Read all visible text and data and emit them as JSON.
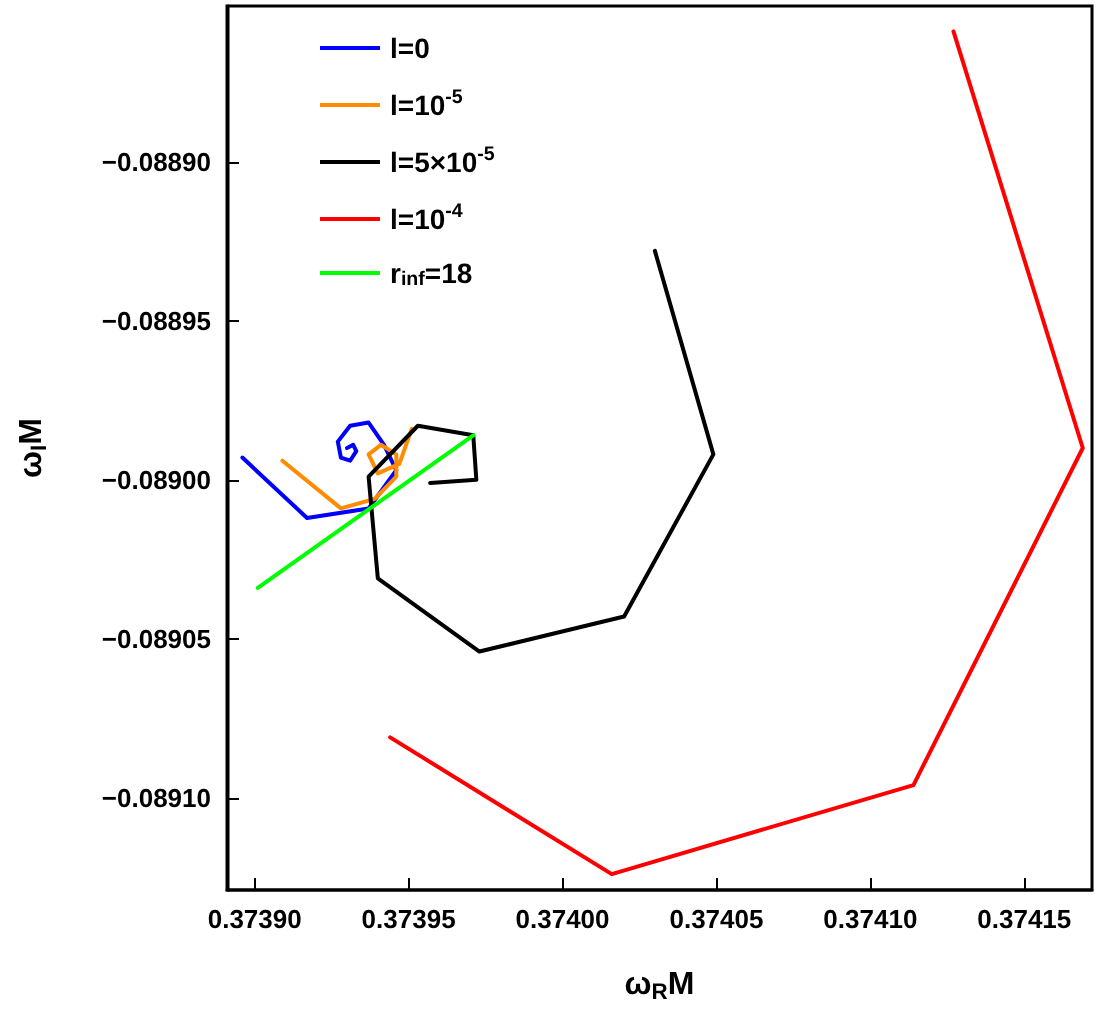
{
  "chart_data": {
    "type": "line",
    "xlabel": "ω$_{R}$M",
    "ylabel": "ω$_{I}$M",
    "legend": "top left",
    "grid": false,
    "marker": "none",
    "line_style": "solid",
    "xlim": [
      0.373891,
      0.374172
    ],
    "ylim": [
      -0.089129,
      -0.088851
    ],
    "xticks": [
      {
        "value": 0.3739,
        "label": "0.37390"
      },
      {
        "value": 0.37395,
        "label": "0.37395"
      },
      {
        "value": 0.374,
        "label": "0.37400"
      },
      {
        "value": 0.37405,
        "label": "0.37405"
      },
      {
        "value": 0.3741,
        "label": "0.37410"
      },
      {
        "value": 0.37415,
        "label": "0.37415"
      }
    ],
    "yticks": [
      {
        "value": -0.0889,
        "label": "−0.08890"
      },
      {
        "value": -0.08895,
        "label": "−0.08895"
      },
      {
        "value": -0.089,
        "label": "−0.08900"
      },
      {
        "value": -0.08905,
        "label": "−0.08905"
      },
      {
        "value": -0.0891,
        "label": "−0.08910"
      }
    ],
    "series": [
      {
        "name": "l=0",
        "color": "#0000ff",
        "x": [
          0.373896,
          0.373917,
          0.373937,
          0.373946,
          0.373942,
          0.373937,
          0.373931,
          0.373927,
          0.373928,
          0.373931,
          0.373933,
          0.373932,
          0.37393
        ],
        "values": [
          -0.088993,
          -0.089012,
          -0.089009,
          -0.088997,
          -0.088989,
          -0.088982,
          -0.088983,
          -0.088988,
          -0.088993,
          -0.088994,
          -0.088991,
          -0.088989,
          -0.08899
        ]
      },
      {
        "name": "l=10$^{-5}$",
        "color": "#ff8c00",
        "x": [
          0.373909,
          0.373928,
          0.373939,
          0.373946,
          0.373946,
          0.373941,
          0.373937,
          0.37394,
          0.373947,
          0.373951
        ],
        "values": [
          -0.088994,
          -0.089009,
          -0.089006,
          -0.088999,
          -0.088992,
          -0.088989,
          -0.088992,
          -0.088998,
          -0.088995,
          -0.088984
        ]
      },
      {
        "name": "l=5×10$^{-5}$",
        "color": "#000000",
        "x": [
          0.373957,
          0.373972,
          0.373971,
          0.373953,
          0.373937,
          0.37394,
          0.373973,
          0.37402,
          0.374049,
          0.37403
        ],
        "values": [
          -0.089001,
          -0.089,
          -0.088986,
          -0.088983,
          -0.088999,
          -0.089031,
          -0.089054,
          -0.089043,
          -0.088992,
          -0.088928
        ]
      },
      {
        "name": "l=10$^{-4}$",
        "color": "#ff0000",
        "x": [
          0.373944,
          0.374016,
          0.374114,
          0.374169,
          0.374127
        ],
        "values": [
          -0.089081,
          -0.089124,
          -0.089096,
          -0.08899,
          -0.088859
        ]
      },
      {
        "name": "r$_{inf}$=18",
        "color": "#00ff00",
        "x": [
          0.373901,
          0.373971
        ],
        "values": [
          -0.089034,
          -0.088986
        ]
      }
    ]
  }
}
